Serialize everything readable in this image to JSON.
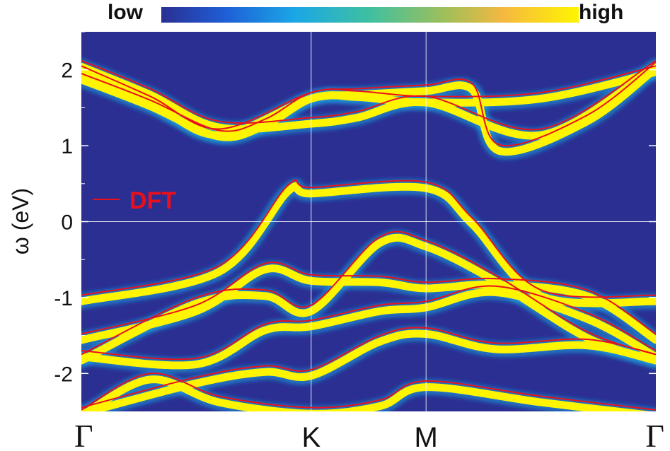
{
  "colorbar": {
    "low_label": "low",
    "high_label": "high"
  },
  "chart_data": {
    "type": "line",
    "title": "",
    "xlabel": "",
    "ylabel": "ω (eV)",
    "ylim": [
      -2.5,
      2.5
    ],
    "yticks": [
      2,
      1,
      0,
      -1,
      -2
    ],
    "ytick_labels": [
      "2",
      "1",
      "0",
      "-1",
      "-2"
    ],
    "high_symmetry_points": [
      {
        "label": "Γ",
        "k": 0.0
      },
      {
        "label": "K",
        "k": 1.0
      },
      {
        "label": "M",
        "k": 1.5
      },
      {
        "label": "Γ",
        "k": 2.5
      }
    ],
    "grid": "vertical lines at K and M, horizontal line at 0",
    "legend": {
      "entries": [
        "DFT"
      ],
      "placement": "left, middle"
    },
    "colors": {
      "dft": "#e8101c",
      "band_spectral": "#fff500",
      "background": "#2b2f92"
    },
    "series": [
      {
        "name": "DFT",
        "group": "upper",
        "k": [
          0,
          0.3,
          0.6,
          1.0,
          1.2,
          1.5,
          2.0,
          2.5
        ],
        "values": [
          2.12,
          1.75,
          1.32,
          1.37,
          1.45,
          1.65,
          1.22,
          2.12
        ]
      },
      {
        "name": "DFT",
        "group": "upper",
        "k": [
          0,
          0.3,
          0.6,
          1.0,
          1.2,
          1.5,
          2.0,
          2.5
        ],
        "values": [
          2.05,
          1.65,
          1.22,
          1.7,
          1.72,
          1.65,
          1.7,
          2.05
        ]
      },
      {
        "name": "DFT",
        "group": "upper",
        "k": [
          0,
          0.3,
          0.6,
          0.8,
          1.0,
          1.2,
          1.5,
          1.7,
          1.82,
          2.2,
          2.5
        ],
        "values": [
          1.95,
          1.6,
          1.2,
          1.35,
          1.7,
          1.75,
          1.8,
          1.82,
          1.01,
          1.4,
          2.1
        ]
      },
      {
        "name": "DFT",
        "group": "middle",
        "k": [
          0,
          0.6,
          0.9,
          1.0,
          1.5,
          1.7,
          2.0,
          2.5
        ],
        "values": [
          -0.97,
          -0.58,
          0.48,
          0.45,
          0.52,
          0.05,
          -0.9,
          -0.97
        ]
      },
      {
        "name": "DFT",
        "group": "lower",
        "k": [
          0,
          0.5,
          0.8,
          1.0,
          1.3,
          1.5,
          1.8,
          2.2,
          2.5
        ],
        "values": [
          -1.48,
          -1.1,
          -0.55,
          -0.7,
          -0.72,
          -0.8,
          -0.75,
          -0.9,
          -1.48
        ]
      },
      {
        "name": "DFT",
        "group": "lower",
        "k": [
          0,
          0.5,
          0.8,
          1.0,
          1.3,
          1.5,
          1.8,
          2.2,
          2.5
        ],
        "values": [
          -1.75,
          -1.0,
          -0.9,
          -1.1,
          -0.2,
          -0.25,
          -0.7,
          -1.45,
          -1.75
        ]
      },
      {
        "name": "DFT",
        "group": "lower",
        "k": [
          0,
          0.5,
          0.8,
          1.0,
          1.3,
          1.5,
          1.8,
          2.2,
          2.5
        ],
        "values": [
          -1.7,
          -1.8,
          -1.35,
          -1.3,
          -1.1,
          -1.05,
          -0.85,
          -1.2,
          -1.7
        ]
      },
      {
        "name": "DFT",
        "group": "lower",
        "k": [
          0,
          0.5,
          0.8,
          1.0,
          1.3,
          1.5,
          1.8,
          2.2,
          2.5
        ],
        "values": [
          -2.45,
          -2.05,
          -1.9,
          -1.95,
          -1.5,
          -1.4,
          -1.6,
          -1.55,
          -1.75
        ]
      },
      {
        "name": "DFT",
        "group": "lower",
        "k": [
          0,
          0.3,
          0.6,
          1.0,
          1.3,
          1.5,
          2.0,
          2.5
        ],
        "values": [
          -2.48,
          -2.0,
          -2.3,
          -2.45,
          -2.35,
          -2.1,
          -2.3,
          -2.48
        ]
      }
    ]
  }
}
